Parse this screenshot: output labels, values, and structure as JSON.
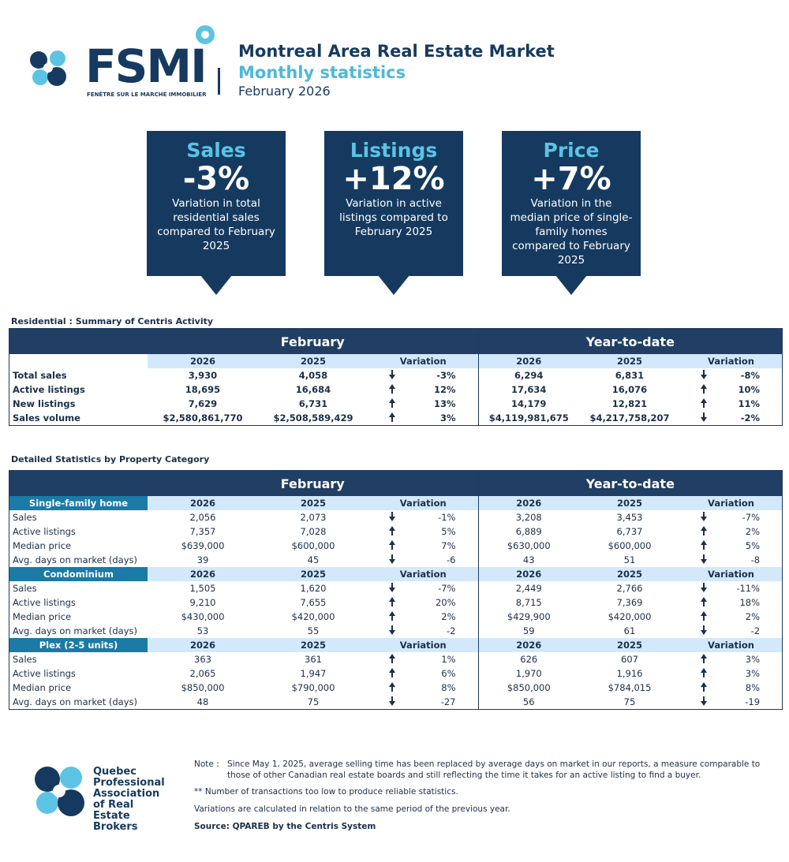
{
  "header": {
    "logo_text": "FSMI",
    "logo_subtitle": "FENÊTRE SUR LE MARCHÉ IMMOBILIER",
    "title": "Montreal Area Real Estate Market",
    "subtitle": "Monthly statistics",
    "period": "February 2026"
  },
  "cards": [
    {
      "label": "Sales",
      "value": "-3%",
      "text": "Variation in total residential sales compared to February 2025"
    },
    {
      "label": "Listings",
      "value": "+12%",
      "text": "Variation in active listings compared to February 2025"
    },
    {
      "label": "Price",
      "value": "+7%",
      "text": "Variation in the median price of single-family homes compared to February 2025"
    }
  ],
  "summary": {
    "title": "Residential : Summary of Centris Activity",
    "groups": [
      "February",
      "Year-to-date"
    ],
    "columns": [
      "2026",
      "2025",
      "Variation"
    ],
    "rows": [
      {
        "label": "Total sales",
        "values": [
          "3,930",
          "4,058",
          "-3%",
          "6,294",
          "6,831",
          "-8%"
        ]
      },
      {
        "label": "Active listings",
        "values": [
          "18,695",
          "16,684",
          "12%",
          "17,634",
          "16,076",
          "10%"
        ]
      },
      {
        "label": "New listings",
        "values": [
          "7,629",
          "6,731",
          "13%",
          "14,179",
          "12,821",
          "11%"
        ]
      },
      {
        "label": "Sales volume",
        "values": [
          "$2,580,861,770",
          "$2,508,589,429",
          "3%",
          "$4,119,981,675",
          "$4,217,758,207",
          "-2%"
        ]
      }
    ]
  },
  "detailed": {
    "title": "Detailed Statistics by Property Category",
    "groups": [
      "February",
      "Year-to-date"
    ],
    "columns": [
      "2026",
      "2025",
      "Variation"
    ],
    "categories": [
      {
        "name": "Single-family home",
        "rows": [
          {
            "label": "Sales",
            "values": [
              "2,056",
              "2,073",
              "-1%",
              "3,208",
              "3,453",
              "-7%"
            ]
          },
          {
            "label": "Active listings",
            "values": [
              "7,357",
              "7,028",
              "5%",
              "6,889",
              "6,737",
              "2%"
            ]
          },
          {
            "label": "Median price",
            "values": [
              "$639,000",
              "$600,000",
              "7%",
              "$630,000",
              "$600,000",
              "5%"
            ]
          },
          {
            "label": "Avg. days on market (days)",
            "values": [
              "39",
              "45",
              "-6",
              "43",
              "51",
              "-8"
            ]
          }
        ]
      },
      {
        "name": "Condominium",
        "rows": [
          {
            "label": "Sales",
            "values": [
              "1,505",
              "1,620",
              "-7%",
              "2,449",
              "2,766",
              "-11%"
            ]
          },
          {
            "label": "Active listings",
            "values": [
              "9,210",
              "7,655",
              "20%",
              "8,715",
              "7,369",
              "18%"
            ]
          },
          {
            "label": "Median price",
            "values": [
              "$430,000",
              "$420,000",
              "2%",
              "$429,900",
              "$420,000",
              "2%"
            ]
          },
          {
            "label": "Avg. days on market (days)",
            "values": [
              "53",
              "55",
              "-2",
              "59",
              "61",
              "-2"
            ]
          }
        ]
      },
      {
        "name": "Plex (2-5 units)",
        "rows": [
          {
            "label": "Sales",
            "values": [
              "363",
              "361",
              "1%",
              "626",
              "607",
              "3%"
            ]
          },
          {
            "label": "Active listings",
            "values": [
              "2,065",
              "1,947",
              "6%",
              "1,970",
              "1,916",
              "3%"
            ]
          },
          {
            "label": "Median price",
            "values": [
              "$850,000",
              "$790,000",
              "8%",
              "$850,000",
              "$784,015",
              "8%"
            ]
          },
          {
            "label": "Avg. days on market (days)",
            "values": [
              "48",
              "75",
              "-27",
              "56",
              "75",
              "-19"
            ]
          }
        ]
      }
    ]
  },
  "footer": {
    "organization": "Quebec Professional Association of Real Estate Brokers",
    "note_label": "Note :",
    "note": "Since May 1, 2025, average selling time has been replaced by average days on market in our reports, a measure comparable to those of other Canadian real estate boards and still reflecting the time it takes for an active listing to find a buyer.",
    "low_transactions": "** Number of transactions too low to produce reliable statistics.",
    "variations": "Variations are calculated in relation to the same period of the previous year.",
    "source": "Source: QPAREB by the Centris System"
  }
}
